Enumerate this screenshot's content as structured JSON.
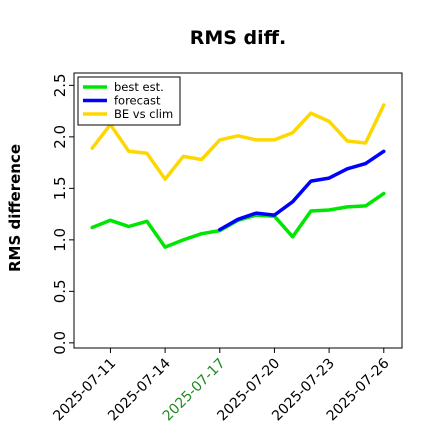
{
  "chart_data": {
    "type": "line",
    "title": "RMS diff.",
    "ylabel": "RMS difference",
    "xlabel": "",
    "ylim": [
      0,
      2.5
    ],
    "yticks": [
      0.0,
      0.5,
      1.0,
      1.5,
      2.0,
      2.5
    ],
    "ytick_labels": [
      "0.0",
      "0.5",
      "1.0",
      "1.5",
      "2.0",
      "2.5"
    ],
    "x": [
      "2025-07-10",
      "2025-07-11",
      "2025-07-12",
      "2025-07-13",
      "2025-07-14",
      "2025-07-15",
      "2025-07-16",
      "2025-07-17",
      "2025-07-18",
      "2025-07-19",
      "2025-07-20",
      "2025-07-21",
      "2025-07-22",
      "2025-07-23",
      "2025-07-24",
      "2025-07-25",
      "2025-07-26"
    ],
    "xticks": [
      "2025-07-11",
      "2025-07-14",
      "2025-07-17",
      "2025-07-20",
      "2025-07-23",
      "2025-07-26"
    ],
    "xtick_colors": [
      "#000000",
      "#000000",
      "#228b22",
      "#000000",
      "#000000",
      "#000000"
    ],
    "xlim": [
      "2025-07-09",
      "2025-07-27"
    ],
    "grid": false,
    "legend_position": "top-left",
    "series": [
      {
        "name": "best est.",
        "color": "#00e600",
        "x": [
          "2025-07-10",
          "2025-07-11",
          "2025-07-12",
          "2025-07-13",
          "2025-07-14",
          "2025-07-15",
          "2025-07-16",
          "2025-07-17",
          "2025-07-18",
          "2025-07-19",
          "2025-07-20",
          "2025-07-21",
          "2025-07-22",
          "2025-07-23",
          "2025-07-24",
          "2025-07-25",
          "2025-07-26"
        ],
        "values": [
          1.12,
          1.19,
          1.13,
          1.18,
          0.93,
          1.0,
          1.06,
          1.09,
          1.19,
          1.24,
          1.23,
          1.03,
          1.28,
          1.29,
          1.32,
          1.33,
          1.45
        ]
      },
      {
        "name": "forecast",
        "color": "#0000ff",
        "x": [
          "2025-07-17",
          "2025-07-18",
          "2025-07-19",
          "2025-07-20",
          "2025-07-21",
          "2025-07-22",
          "2025-07-23",
          "2025-07-24",
          "2025-07-25",
          "2025-07-26"
        ],
        "values": [
          1.1,
          1.2,
          1.26,
          1.24,
          1.37,
          1.57,
          1.6,
          1.69,
          1.74,
          1.86
        ]
      },
      {
        "name": "BE vs clim",
        "color": "#ffd700",
        "x": [
          "2025-07-10",
          "2025-07-11",
          "2025-07-12",
          "2025-07-13",
          "2025-07-14",
          "2025-07-15",
          "2025-07-16",
          "2025-07-17",
          "2025-07-18",
          "2025-07-19",
          "2025-07-20",
          "2025-07-21",
          "2025-07-22",
          "2025-07-23",
          "2025-07-24",
          "2025-07-25",
          "2025-07-26"
        ],
        "values": [
          1.89,
          2.12,
          1.86,
          1.84,
          1.59,
          1.81,
          1.78,
          1.97,
          2.01,
          1.97,
          1.97,
          2.04,
          2.23,
          2.15,
          1.96,
          1.94,
          2.31
        ]
      }
    ]
  }
}
